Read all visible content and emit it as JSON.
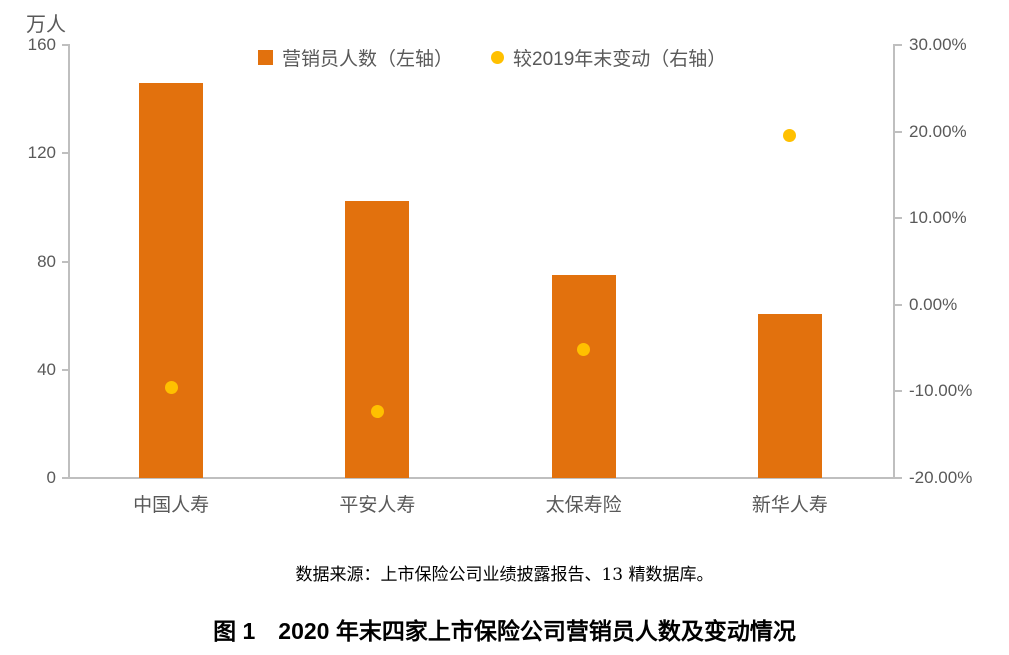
{
  "figure": {
    "unit_label": "万人",
    "source": "数据来源：上市保险公司业绩披露报告、13 精数据库。",
    "caption": "图 1　2020 年末四家上市保险公司营销员人数及变动情况"
  },
  "chart_data": {
    "type": "bar",
    "subtype": "dual-axis column + scatter markers",
    "title": "图 1　2020 年末四家上市保险公司营销员人数及变动情况",
    "source_note": "数据来源：上市保险公司业绩披露报告、13 精数据库。",
    "categories": [
      "中国人寿",
      "平安人寿",
      "太保寿险",
      "新华人寿"
    ],
    "series": [
      {
        "name": "营销员人数（左轴）",
        "type": "bar",
        "axis": "left",
        "color": "#E2710D",
        "values": [
          145.8,
          102.4,
          74.9,
          60.6
        ]
      },
      {
        "name": "较2019年末变动（右轴）",
        "type": "scatter",
        "axis": "right",
        "color": "#FFC000",
        "values": [
          -9.6,
          -12.3,
          -5.2,
          19.5
        ]
      }
    ],
    "left_axis": {
      "title": "万人",
      "min": 0,
      "max": 160,
      "ticks": [
        {
          "label": "160",
          "value": 160
        },
        {
          "label": "120",
          "value": 120
        },
        {
          "label": "80",
          "value": 80
        },
        {
          "label": "40",
          "value": 40
        },
        {
          "label": "0",
          "value": 0
        }
      ]
    },
    "right_axis": {
      "min": -20,
      "max": 30,
      "ticks": [
        {
          "label": "30.00%",
          "value": 30
        },
        {
          "label": "20.00%",
          "value": 20
        },
        {
          "label": "10.00%",
          "value": 10
        },
        {
          "label": "0.00%",
          "value": 0
        },
        {
          "label": "-10.00%",
          "value": -10
        },
        {
          "label": "-20.00%",
          "value": -20
        }
      ]
    },
    "legend_position": "top",
    "grid": false,
    "colors": {
      "bar": "#E2710D",
      "dot": "#FFC000",
      "axis_line": "#BFBFBF",
      "axis_text": "#595959",
      "caption_text": "#000000"
    }
  }
}
